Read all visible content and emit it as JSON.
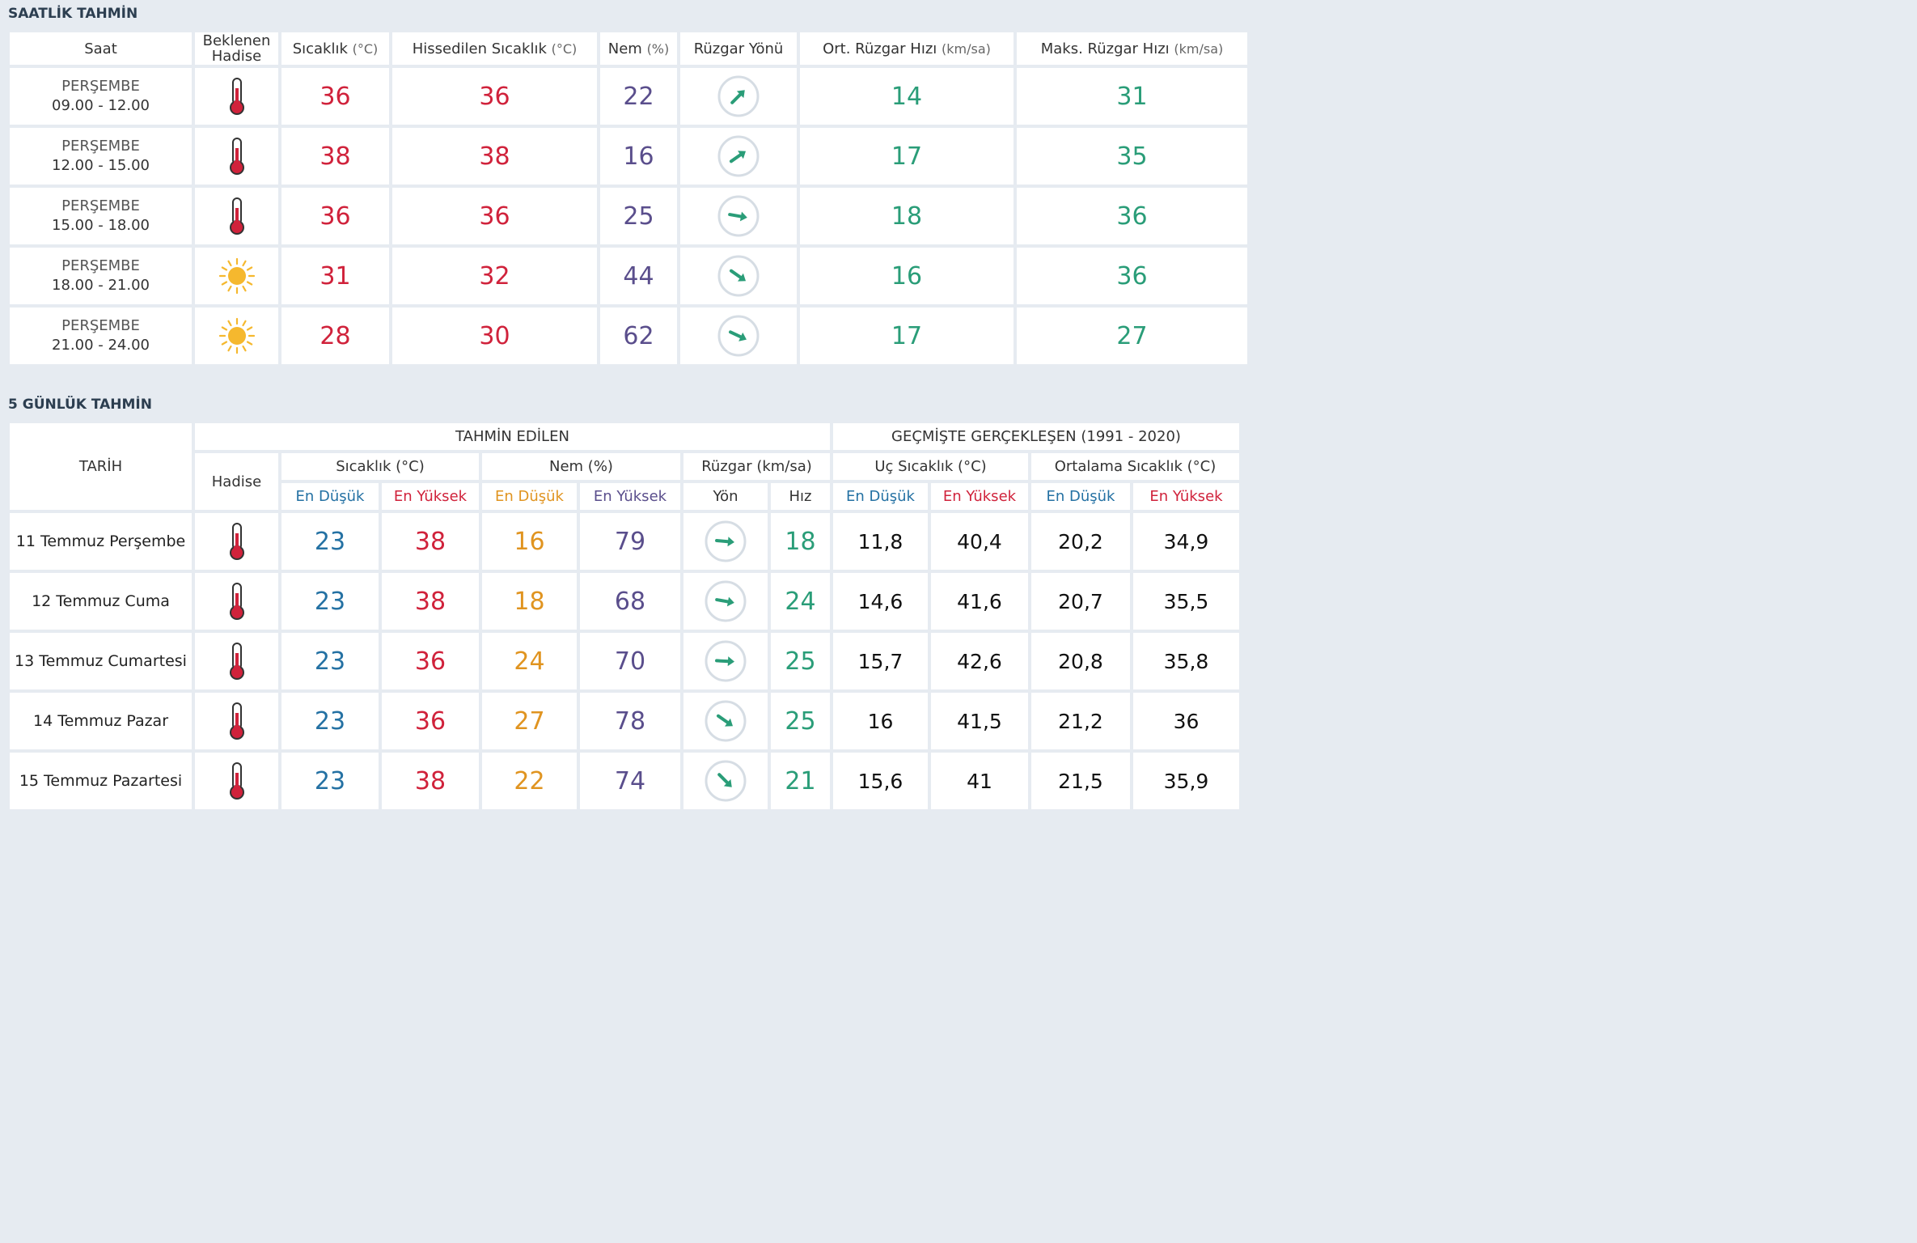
{
  "hourly": {
    "title": "SAATLİK TAHMİN",
    "headers": {
      "saat": "Saat",
      "hadise": "Beklenen Hadise",
      "sicaklik": "Sıcaklık",
      "sicaklik_unit": "(°C)",
      "hissedilen": "Hissedilen Sıcaklık",
      "hissedilen_unit": "(°C)",
      "nem": "Nem",
      "nem_unit": "(%)",
      "ruzgar_yon": "Rüzgar Yönü",
      "ort_ruzgar": "Ort. Rüzgar Hızı",
      "ort_ruzgar_unit": "(km/sa)",
      "maks_ruzgar": "Maks. Rüzgar Hızı",
      "maks_ruzgar_unit": "(km/sa)"
    },
    "rows": [
      {
        "day": "PERŞEMBE",
        "time": "09.00 - 12.00",
        "icon": "thermometer-icon",
        "temp": "36",
        "feels": "36",
        "humidity": "22",
        "wind_dir_deg": -45,
        "wind_avg": "14",
        "wind_max": "31"
      },
      {
        "day": "PERŞEMBE",
        "time": "12.00 - 15.00",
        "icon": "thermometer-icon",
        "temp": "38",
        "feels": "38",
        "humidity": "16",
        "wind_dir_deg": -35,
        "wind_avg": "17",
        "wind_max": "35"
      },
      {
        "day": "PERŞEMBE",
        "time": "15.00 - 18.00",
        "icon": "thermometer-icon",
        "temp": "36",
        "feels": "36",
        "humidity": "25",
        "wind_dir_deg": 10,
        "wind_avg": "18",
        "wind_max": "36"
      },
      {
        "day": "PERŞEMBE",
        "time": "18.00 - 21.00",
        "icon": "sun-icon",
        "temp": "31",
        "feels": "32",
        "humidity": "44",
        "wind_dir_deg": 35,
        "wind_avg": "16",
        "wind_max": "36"
      },
      {
        "day": "PERŞEMBE",
        "time": "21.00 - 24.00",
        "icon": "sun-icon",
        "temp": "28",
        "feels": "30",
        "humidity": "62",
        "wind_dir_deg": 25,
        "wind_avg": "17",
        "wind_max": "27"
      }
    ]
  },
  "daily": {
    "title": "5 GÜNLÜK TAHMİN",
    "headers": {
      "tarih": "TARİH",
      "tahmin_edilen": "TAHMİN EDİLEN",
      "gecmiste": "GEÇMİŞTE GERÇEKLEŞEN (1991 - 2020)",
      "hadise": "Hadise",
      "sicaklik": "Sıcaklık (°C)",
      "nem": "Nem (%)",
      "ruzgar": "Rüzgar (km/sa)",
      "uc_sicaklik": "Uç Sıcaklık (°C)",
      "ortalama_sicaklik": "Ortalama Sıcaklık (°C)",
      "en_dusuk": "En Düşük",
      "en_yuksek": "En Yüksek",
      "yon": "Yön",
      "hiz": "Hız"
    },
    "rows": [
      {
        "date": "11 Temmuz Perşembe",
        "icon": "thermometer-icon",
        "t_min": "23",
        "t_max": "38",
        "h_min": "16",
        "h_max": "79",
        "wind_dir_deg": 5,
        "wind_speed": "18",
        "ext_min": "11,8",
        "ext_max": "40,4",
        "avg_min": "20,2",
        "avg_max": "34,9"
      },
      {
        "date": "12 Temmuz Cuma",
        "icon": "thermometer-icon",
        "t_min": "23",
        "t_max": "38",
        "h_min": "18",
        "h_max": "68",
        "wind_dir_deg": 10,
        "wind_speed": "24",
        "ext_min": "14,6",
        "ext_max": "41,6",
        "avg_min": "20,7",
        "avg_max": "35,5"
      },
      {
        "date": "13 Temmuz Cumartesi",
        "icon": "thermometer-icon",
        "t_min": "23",
        "t_max": "36",
        "h_min": "24",
        "h_max": "70",
        "wind_dir_deg": 3,
        "wind_speed": "25",
        "ext_min": "15,7",
        "ext_max": "42,6",
        "avg_min": "20,8",
        "avg_max": "35,8"
      },
      {
        "date": "14 Temmuz Pazar",
        "icon": "thermometer-icon",
        "t_min": "23",
        "t_max": "36",
        "h_min": "27",
        "h_max": "78",
        "wind_dir_deg": 35,
        "wind_speed": "25",
        "ext_min": "16",
        "ext_max": "41,5",
        "avg_min": "21,2",
        "avg_max": "36"
      },
      {
        "date": "15 Temmuz Pazartesi",
        "icon": "thermometer-icon",
        "t_min": "23",
        "t_max": "38",
        "h_min": "22",
        "h_max": "74",
        "wind_dir_deg": 45,
        "wind_speed": "21",
        "ext_min": "15,6",
        "ext_max": "41",
        "avg_min": "21,5",
        "avg_max": "35,9"
      }
    ]
  },
  "colors": {
    "red": "#d0223b",
    "purple": "#5a4e8c",
    "green": "#2a9d78",
    "blue": "#2471a3",
    "orange": "#e09420"
  }
}
